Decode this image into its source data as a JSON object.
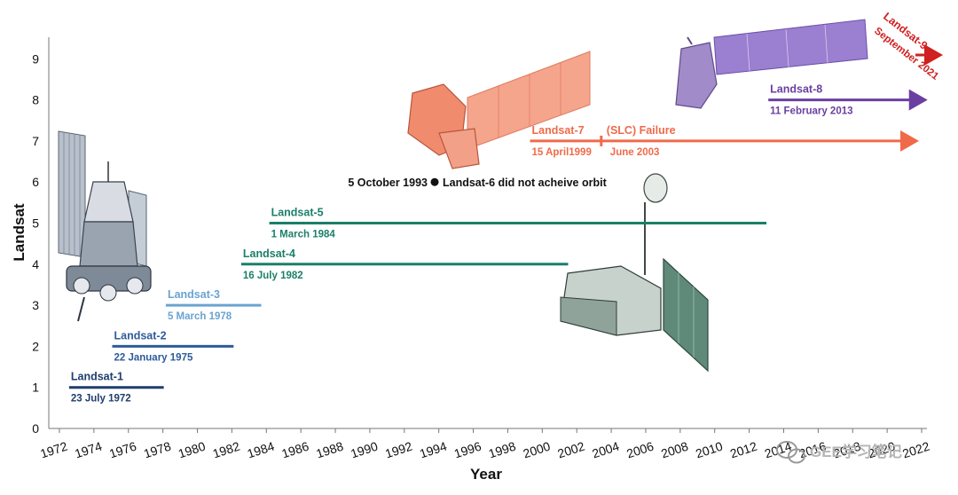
{
  "chart_data": {
    "type": "timeline",
    "xlabel": "Year",
    "ylabel": "Landsat",
    "xlim": [
      1972,
      2022
    ],
    "ylim": [
      0,
      9.5
    ],
    "x_ticks": [
      "1972",
      "1974",
      "1976",
      "1978",
      "1980",
      "1982",
      "1984",
      "1986",
      "1988",
      "1990",
      "1992",
      "1994",
      "1996",
      "1998",
      "2000",
      "2002",
      "2004",
      "2006",
      "2008",
      "2010",
      "2012",
      "2014",
      "2016",
      "2018",
      "2020",
      "2022"
    ],
    "y_ticks": [
      "0",
      "1",
      "2",
      "3",
      "4",
      "5",
      "6",
      "7",
      "8",
      "9"
    ],
    "missions": [
      {
        "name": "Landsat-1",
        "date": "23 July 1972",
        "y": 1,
        "start": 1972.56,
        "end": 1978.05,
        "color": "#1f3d6e",
        "arrow": false
      },
      {
        "name": "Landsat-2",
        "date": "22 January 1975",
        "y": 2,
        "start": 1975.06,
        "end": 1982.1,
        "color": "#2e5c9a",
        "arrow": false
      },
      {
        "name": "Landsat-3",
        "date": "5 March 1978",
        "y": 3,
        "start": 1978.17,
        "end": 1983.7,
        "color": "#6aa3d1",
        "arrow": false
      },
      {
        "name": "Landsat-4",
        "date": "16 July 1982",
        "y": 4,
        "start": 1982.54,
        "end": 2001.5,
        "color": "#1b7f69",
        "arrow": false
      },
      {
        "name": "Landsat-5",
        "date": "1 March 1984",
        "y": 5,
        "start": 1984.17,
        "end": 2013.0,
        "color": "#1b7f69",
        "arrow": false
      },
      {
        "name": "Landsat-7",
        "date": "15 April1999",
        "y": 7,
        "start": 1999.29,
        "end": 2022.0,
        "color": "#f06a4a",
        "arrow": true
      },
      {
        "name": "Landsat-8",
        "date": "11 February 2013",
        "y": 8,
        "start": 2013.11,
        "end": 2022.5,
        "color": "#6a3fa0",
        "arrow": true
      },
      {
        "name": "Landsat-9",
        "date": "September 2021",
        "y": 9,
        "start": 2021.7,
        "end": 2023.0,
        "color": "#d02020",
        "arrow": true
      }
    ],
    "annotations": [
      {
        "text": "(SLC) Failure",
        "subtext": "June 2003",
        "x": 2003.42,
        "y": 7,
        "color": "#f06a4a"
      },
      {
        "text": "5 October 1993",
        "subtext": "Landsat-6 did not acheive orbit",
        "x": 1993.76,
        "y": 6,
        "color": "#111111"
      }
    ]
  },
  "watermark": "GEE学习笔记",
  "icons": [
    "satellite-landsat-1-illustration",
    "satellite-landsat-5-illustration",
    "satellite-landsat-7-illustration",
    "satellite-landsat-8-illustration",
    "wechat-icon"
  ]
}
